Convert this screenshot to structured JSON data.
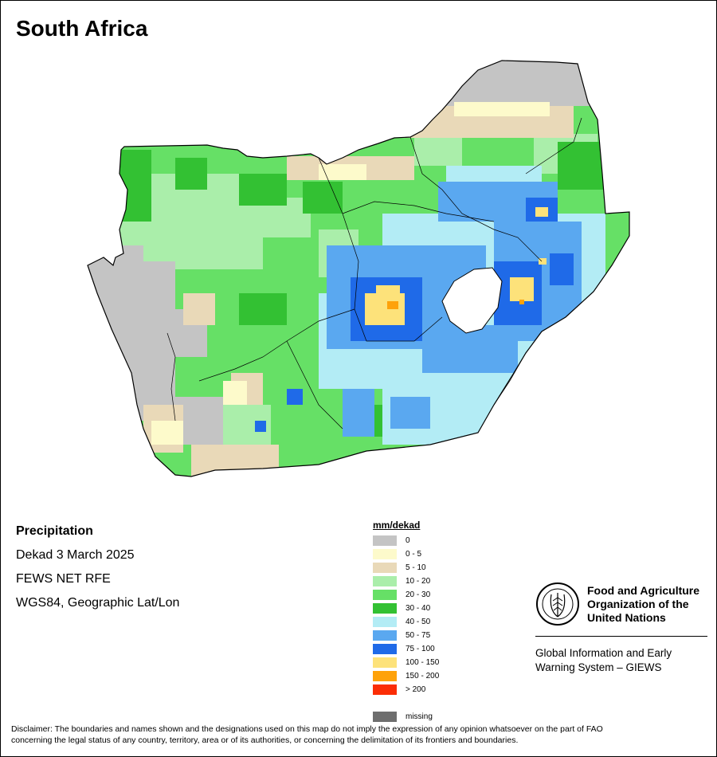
{
  "map": {
    "title": "South Africa"
  },
  "info": {
    "variable": "Precipitation",
    "period": "Dekad 3 March 2025",
    "source": "FEWS NET RFE",
    "projection": "WGS84, Geographic Lat/Lon"
  },
  "legend": {
    "title": "mm/dekad",
    "classes": [
      {
        "label": "0",
        "color": "#c4c4c4"
      },
      {
        "label": "0 - 5",
        "color": "#fdfacb"
      },
      {
        "label": "5 - 10",
        "color": "#e9d9b8"
      },
      {
        "label": "10 - 20",
        "color": "#aaeeaa"
      },
      {
        "label": "20 - 30",
        "color": "#66e066"
      },
      {
        "label": "30 - 40",
        "color": "#33c133"
      },
      {
        "label": "40 - 50",
        "color": "#b3ecf5"
      },
      {
        "label": "50 - 75",
        "color": "#5aa8f0"
      },
      {
        "label": "75 - 100",
        "color": "#1f6ae8"
      },
      {
        "label": "100 - 150",
        "color": "#fde27a"
      },
      {
        "label": "150 - 200",
        "color": "#fea20a"
      },
      {
        "label": "> 200",
        "color": "#fb2d06"
      }
    ],
    "missing": {
      "label": "missing",
      "color": "#6e6e6e"
    }
  },
  "logo": {
    "org_line1": "Food and Agriculture",
    "org_line2": "Organization of the",
    "org_line3": "United Nations",
    "system_line1": "Global Information and Early",
    "system_line2": "Warning System – GIEWS",
    "emblem_letters": "FAO",
    "emblem_motto": "FIAT PANIS"
  },
  "disclaimer": {
    "line1": "Disclaimer: The boundaries and names shown and the designations used on this map do not imply the expression of any opinion whatsoever on the part of FAO",
    "line2": "concerning the legal status of any country, territory, area or of its authorities, or concerning the delimitation of its frontiers and boundaries."
  }
}
